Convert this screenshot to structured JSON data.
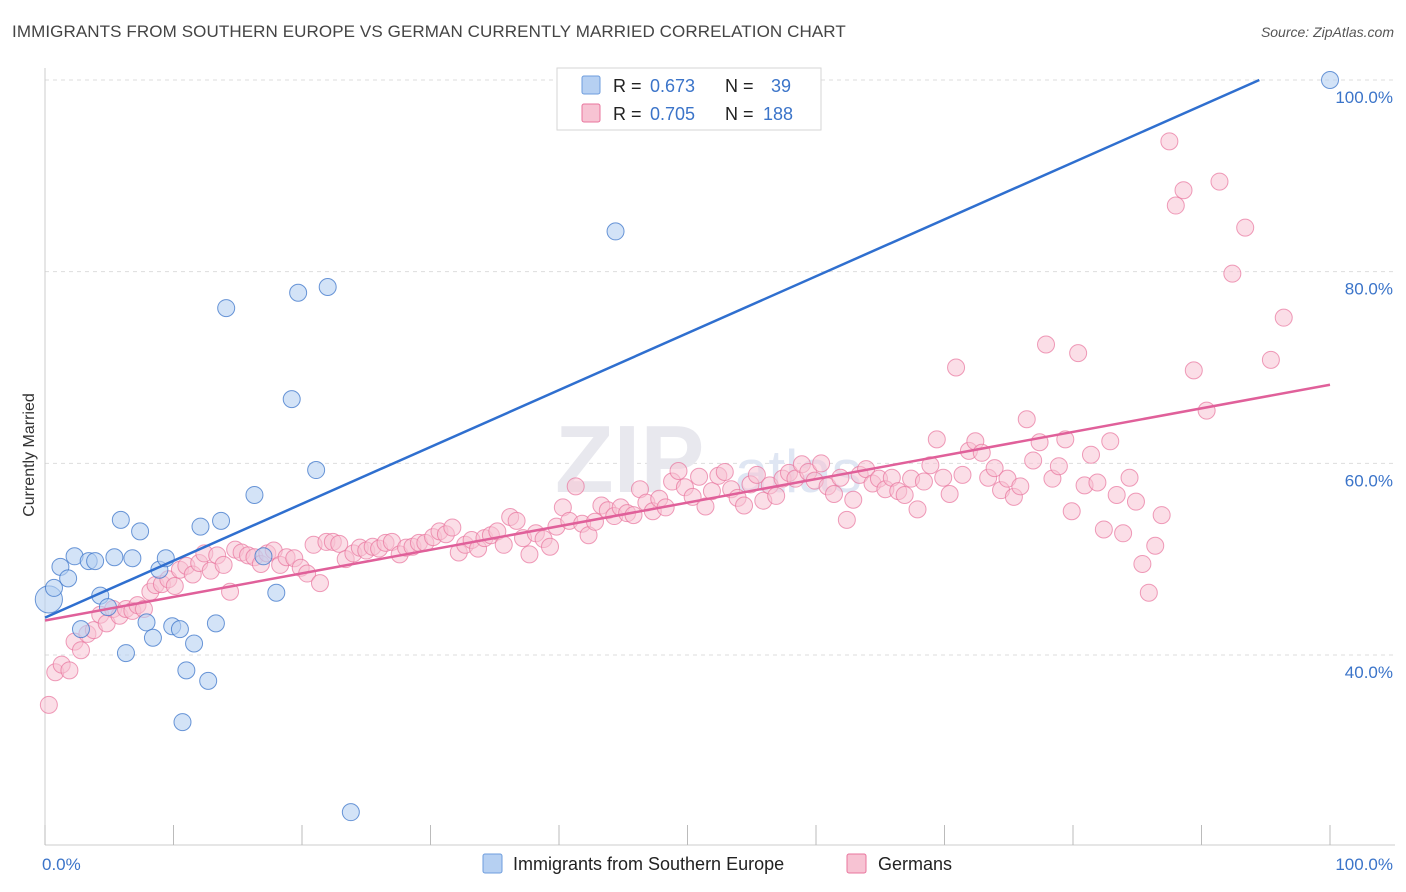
{
  "title": "IMMIGRANTS FROM SOUTHERN EUROPE VS GERMAN CURRENTLY MARRIED CORRELATION CHART",
  "source": "Source: ZipAtlas.com",
  "watermark": {
    "zip": "ZIP",
    "atlas": "atlas"
  },
  "colors": {
    "blue": "#3b74c9",
    "blue_fill": "#b6d0f2",
    "blue_line": "#2f6fcf",
    "pink": "#e8749d",
    "pink_fill": "#f7c3d3",
    "pink_line": "#e0609a",
    "grid": "#dddddd"
  },
  "legend": {
    "rows": [
      {
        "r_label": "R =",
        "r_value": "0.673",
        "n_label": "N =",
        "n_value": "39"
      },
      {
        "r_label": "R =",
        "r_value": "0.705",
        "n_label": "N =",
        "n_value": "188"
      }
    ]
  },
  "bottom_legend": [
    "Immigrants from Southern Europe",
    "Germans"
  ],
  "chart_data": {
    "type": "scatter",
    "xlabel": "",
    "ylabel": "Currently Married",
    "xlim": [
      0,
      100
    ],
    "ylim": [
      20,
      100
    ],
    "x_tick_labels": [
      "0.0%",
      "100.0%"
    ],
    "y_ticks": [
      40,
      60,
      80,
      100
    ],
    "y_tick_labels": [
      "40.0%",
      "60.0%",
      "80.0%",
      "100.0%"
    ],
    "series": [
      {
        "name": "Immigrants from Southern Europe",
        "color": "#3b74c9",
        "trendline": {
          "x": [
            0,
            94.5
          ],
          "y": [
            43.9,
            100
          ]
        },
        "points": [
          [
            0.3,
            45.8,
            1.6
          ],
          [
            0.7,
            47.0,
            1
          ],
          [
            1.2,
            49.2,
            1
          ],
          [
            1.8,
            48.0,
            1
          ],
          [
            2.3,
            50.3,
            1
          ],
          [
            2.8,
            42.7,
            1
          ],
          [
            3.4,
            49.8,
            1
          ],
          [
            3.9,
            49.8,
            1
          ],
          [
            4.3,
            46.2,
            1
          ],
          [
            4.9,
            45.0,
            1
          ],
          [
            5.4,
            50.2,
            1
          ],
          [
            5.9,
            54.1,
            1
          ],
          [
            6.3,
            40.2,
            1
          ],
          [
            6.8,
            50.1,
            1
          ],
          [
            7.4,
            52.9,
            1
          ],
          [
            7.9,
            43.4,
            1
          ],
          [
            8.4,
            41.8,
            1
          ],
          [
            8.9,
            48.9,
            1
          ],
          [
            9.4,
            50.1,
            1
          ],
          [
            9.9,
            43.0,
            1
          ],
          [
            10.5,
            42.7,
            1
          ],
          [
            11.0,
            38.4,
            1
          ],
          [
            11.6,
            41.2,
            1
          ],
          [
            12.1,
            53.4,
            1
          ],
          [
            12.7,
            37.3,
            1
          ],
          [
            13.3,
            43.3,
            1
          ],
          [
            13.7,
            54.0,
            1
          ],
          [
            14.1,
            76.2,
            1
          ],
          [
            10.7,
            33.0,
            1
          ],
          [
            16.3,
            56.7,
            1
          ],
          [
            17.0,
            50.3,
            1
          ],
          [
            18.0,
            46.5,
            1
          ],
          [
            19.2,
            66.7,
            1
          ],
          [
            19.7,
            77.8,
            1
          ],
          [
            21.1,
            59.3,
            1
          ],
          [
            22.0,
            78.4,
            1
          ],
          [
            23.8,
            23.6,
            1
          ],
          [
            44.4,
            84.2,
            1
          ],
          [
            100.0,
            100.0,
            1
          ]
        ]
      },
      {
        "name": "Germans",
        "color": "#e8749d",
        "trendline": {
          "x": [
            0,
            100
          ],
          "y": [
            43.6,
            68.2
          ]
        },
        "points": [
          [
            0.3,
            34.8
          ],
          [
            0.8,
            38.2
          ],
          [
            1.3,
            39.0
          ],
          [
            1.9,
            38.4
          ],
          [
            2.3,
            41.4
          ],
          [
            2.8,
            40.5
          ],
          [
            3.3,
            42.2
          ],
          [
            3.8,
            42.6
          ],
          [
            4.3,
            44.2
          ],
          [
            4.8,
            43.3
          ],
          [
            5.3,
            44.8
          ],
          [
            5.8,
            44.1
          ],
          [
            6.3,
            44.8
          ],
          [
            6.8,
            44.6
          ],
          [
            7.2,
            45.2
          ],
          [
            7.7,
            44.8
          ],
          [
            8.2,
            46.6
          ],
          [
            8.6,
            47.3
          ],
          [
            9.1,
            47.4
          ],
          [
            9.6,
            47.9
          ],
          [
            10.1,
            47.2
          ],
          [
            10.5,
            48.9
          ],
          [
            11.0,
            49.3
          ],
          [
            11.5,
            48.4
          ],
          [
            12.0,
            49.6
          ],
          [
            12.4,
            50.6
          ],
          [
            12.9,
            48.8
          ],
          [
            13.4,
            50.4
          ],
          [
            13.9,
            49.4
          ],
          [
            14.4,
            46.6
          ],
          [
            14.8,
            51.0
          ],
          [
            15.3,
            50.7
          ],
          [
            15.8,
            50.4
          ],
          [
            16.3,
            50.2
          ],
          [
            16.8,
            49.5
          ],
          [
            17.3,
            50.6
          ],
          [
            17.8,
            50.9
          ],
          [
            18.3,
            49.4
          ],
          [
            18.8,
            50.2
          ],
          [
            19.4,
            50.1
          ],
          [
            19.9,
            49.1
          ],
          [
            20.4,
            48.5
          ],
          [
            20.9,
            51.5
          ],
          [
            21.4,
            47.5
          ],
          [
            21.9,
            51.8
          ],
          [
            22.4,
            51.8
          ],
          [
            22.9,
            51.6
          ],
          [
            23.4,
            50.0
          ],
          [
            24.0,
            50.6
          ],
          [
            24.5,
            51.2
          ],
          [
            25.0,
            50.9
          ],
          [
            25.5,
            51.3
          ],
          [
            26.0,
            51.1
          ],
          [
            26.5,
            51.7
          ],
          [
            27.0,
            51.8
          ],
          [
            27.6,
            50.5
          ],
          [
            28.1,
            51.2
          ],
          [
            28.6,
            51.3
          ],
          [
            29.1,
            51.7
          ],
          [
            29.6,
            51.7
          ],
          [
            30.2,
            52.3
          ],
          [
            30.7,
            52.9
          ],
          [
            31.2,
            52.6
          ],
          [
            31.7,
            53.3
          ],
          [
            32.2,
            50.7
          ],
          [
            32.7,
            51.5
          ],
          [
            33.2,
            52.0
          ],
          [
            33.7,
            51.1
          ],
          [
            34.2,
            52.2
          ],
          [
            34.7,
            52.5
          ],
          [
            35.2,
            52.9
          ],
          [
            35.7,
            51.5
          ],
          [
            36.2,
            54.4
          ],
          [
            36.7,
            54.0
          ],
          [
            37.2,
            52.2
          ],
          [
            37.7,
            50.5
          ],
          [
            38.2,
            52.7
          ],
          [
            38.8,
            52.1
          ],
          [
            39.3,
            51.3
          ],
          [
            39.8,
            53.4
          ],
          [
            40.3,
            55.4
          ],
          [
            40.8,
            54.0
          ],
          [
            41.3,
            57.6
          ],
          [
            41.8,
            53.7
          ],
          [
            42.3,
            52.5
          ],
          [
            42.8,
            53.9
          ],
          [
            43.3,
            55.6
          ],
          [
            43.8,
            55.1
          ],
          [
            44.3,
            54.5
          ],
          [
            44.8,
            55.4
          ],
          [
            45.3,
            54.8
          ],
          [
            45.8,
            54.6
          ],
          [
            46.3,
            57.3
          ],
          [
            46.8,
            55.9
          ],
          [
            47.3,
            55.0
          ],
          [
            47.8,
            56.3
          ],
          [
            48.3,
            55.4
          ],
          [
            48.8,
            58.1
          ],
          [
            49.3,
            59.2
          ],
          [
            49.8,
            57.5
          ],
          [
            50.4,
            56.5
          ],
          [
            50.9,
            58.6
          ],
          [
            51.4,
            55.5
          ],
          [
            51.9,
            57.1
          ],
          [
            52.4,
            58.7
          ],
          [
            52.9,
            59.1
          ],
          [
            53.4,
            57.3
          ],
          [
            53.9,
            56.4
          ],
          [
            54.4,
            55.6
          ],
          [
            54.9,
            57.8
          ],
          [
            55.4,
            58.8
          ],
          [
            55.9,
            56.1
          ],
          [
            56.4,
            57.7
          ],
          [
            56.9,
            56.6
          ],
          [
            57.4,
            58.4
          ],
          [
            57.9,
            59.0
          ],
          [
            58.4,
            58.4
          ],
          [
            58.9,
            59.9
          ],
          [
            59.4,
            59.1
          ],
          [
            59.9,
            58.2
          ],
          [
            60.4,
            60.0
          ],
          [
            60.9,
            57.6
          ],
          [
            61.4,
            56.8
          ],
          [
            61.9,
            58.5
          ],
          [
            62.4,
            54.1
          ],
          [
            62.9,
            56.2
          ],
          [
            63.4,
            58.8
          ],
          [
            63.9,
            59.4
          ],
          [
            64.4,
            57.9
          ],
          [
            64.9,
            58.4
          ],
          [
            65.4,
            57.3
          ],
          [
            65.9,
            58.5
          ],
          [
            66.4,
            57.1
          ],
          [
            66.9,
            56.7
          ],
          [
            67.4,
            58.4
          ],
          [
            67.9,
            55.2
          ],
          [
            68.4,
            58.1
          ],
          [
            68.9,
            59.8
          ],
          [
            69.4,
            62.5
          ],
          [
            69.9,
            58.5
          ],
          [
            70.4,
            56.8
          ],
          [
            70.9,
            70.0
          ],
          [
            71.4,
            58.8
          ],
          [
            71.9,
            61.3
          ],
          [
            72.4,
            62.3
          ],
          [
            72.9,
            61.1
          ],
          [
            73.4,
            58.5
          ],
          [
            73.9,
            59.5
          ],
          [
            74.4,
            57.2
          ],
          [
            74.9,
            58.4
          ],
          [
            75.4,
            56.5
          ],
          [
            75.9,
            57.6
          ],
          [
            76.4,
            64.6
          ],
          [
            76.9,
            60.3
          ],
          [
            77.4,
            62.2
          ],
          [
            77.9,
            72.4
          ],
          [
            78.4,
            58.4
          ],
          [
            78.9,
            59.7
          ],
          [
            79.4,
            62.5
          ],
          [
            79.9,
            55.0
          ],
          [
            80.4,
            71.5
          ],
          [
            80.9,
            57.7
          ],
          [
            81.4,
            60.9
          ],
          [
            81.9,
            58.0
          ],
          [
            82.4,
            53.1
          ],
          [
            82.9,
            62.3
          ],
          [
            83.4,
            56.7
          ],
          [
            83.9,
            52.7
          ],
          [
            84.4,
            58.5
          ],
          [
            84.9,
            56.0
          ],
          [
            85.4,
            49.5
          ],
          [
            85.9,
            46.5
          ],
          [
            86.4,
            51.4
          ],
          [
            86.9,
            54.6
          ],
          [
            88.6,
            88.5
          ],
          [
            89.4,
            69.7
          ],
          [
            90.4,
            65.5
          ],
          [
            91.4,
            89.4
          ],
          [
            92.4,
            79.8
          ],
          [
            93.4,
            84.6
          ],
          [
            95.4,
            70.8
          ],
          [
            96.4,
            75.2
          ],
          [
            87.5,
            93.6
          ],
          [
            88.0,
            86.9
          ]
        ]
      }
    ]
  }
}
